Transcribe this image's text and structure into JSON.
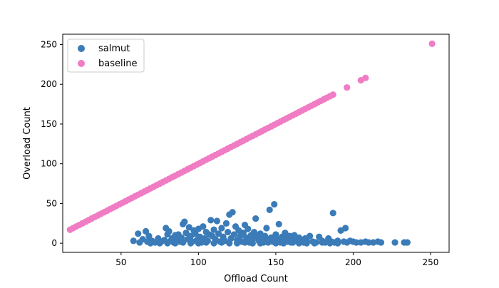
{
  "chart_data": {
    "type": "scatter",
    "title": "",
    "xlabel": "Offload Count",
    "ylabel": "Overload Count",
    "xlim": [
      12.3,
      262.0
    ],
    "ylim": [
      -11.5,
      263.0
    ],
    "x_ticks": [
      50,
      100,
      150,
      200,
      250
    ],
    "y_ticks": [
      0,
      50,
      100,
      150,
      200,
      250
    ],
    "grid": false,
    "legend_position": "top-left",
    "series": [
      {
        "name": "salmut",
        "color": "#3a7bb8",
        "points": [
          [
            58,
            3
          ],
          [
            61,
            12
          ],
          [
            64,
            5
          ],
          [
            66,
            15
          ],
          [
            67,
            2
          ],
          [
            68,
            9
          ],
          [
            70,
            3
          ],
          [
            72,
            1
          ],
          [
            74,
            6
          ],
          [
            76,
            2
          ],
          [
            78,
            4
          ],
          [
            79,
            19
          ],
          [
            80,
            11
          ],
          [
            81,
            15
          ],
          [
            82,
            3
          ],
          [
            83,
            6
          ],
          [
            84,
            1
          ],
          [
            85,
            10
          ],
          [
            86,
            4
          ],
          [
            87,
            11
          ],
          [
            88,
            2
          ],
          [
            89,
            7
          ],
          [
            90,
            24
          ],
          [
            91,
            27
          ],
          [
            92,
            13
          ],
          [
            93,
            5
          ],
          [
            94,
            20
          ],
          [
            95,
            9
          ],
          [
            96,
            2
          ],
          [
            97,
            16
          ],
          [
            98,
            12
          ],
          [
            99,
            4
          ],
          [
            100,
            18
          ],
          [
            101,
            8
          ],
          [
            102,
            1
          ],
          [
            103,
            21
          ],
          [
            104,
            6
          ],
          [
            105,
            14
          ],
          [
            106,
            3
          ],
          [
            107,
            11
          ],
          [
            108,
            29
          ],
          [
            109,
            9
          ],
          [
            110,
            17
          ],
          [
            111,
            5
          ],
          [
            112,
            28
          ],
          [
            113,
            12
          ],
          [
            114,
            2
          ],
          [
            115,
            19
          ],
          [
            116,
            8
          ],
          [
            117,
            3
          ],
          [
            118,
            25
          ],
          [
            119,
            14
          ],
          [
            120,
            36
          ],
          [
            121,
            6
          ],
          [
            122,
            39
          ],
          [
            123,
            11
          ],
          [
            124,
            21
          ],
          [
            125,
            4
          ],
          [
            126,
            16
          ],
          [
            127,
            9
          ],
          [
            128,
            2
          ],
          [
            129,
            13
          ],
          [
            130,
            23
          ],
          [
            131,
            7
          ],
          [
            132,
            18
          ],
          [
            133,
            1
          ],
          [
            134,
            10
          ],
          [
            135,
            5
          ],
          [
            136,
            14
          ],
          [
            137,
            31
          ],
          [
            138,
            8
          ],
          [
            139,
            3
          ],
          [
            140,
            12
          ],
          [
            141,
            6
          ],
          [
            142,
            1
          ],
          [
            143,
            9
          ],
          [
            144,
            19
          ],
          [
            145,
            4
          ],
          [
            146,
            42
          ],
          [
            147,
            7
          ],
          [
            148,
            2
          ],
          [
            149,
            49
          ],
          [
            150,
            11
          ],
          [
            151,
            5
          ],
          [
            152,
            24
          ],
          [
            153,
            1
          ],
          [
            154,
            8
          ],
          [
            155,
            3
          ],
          [
            156,
            13
          ],
          [
            157,
            6
          ],
          [
            158,
            2
          ],
          [
            159,
            9
          ],
          [
            160,
            4
          ],
          [
            161,
            1
          ],
          [
            162,
            10
          ],
          [
            163,
            5
          ],
          [
            164,
            3
          ],
          [
            165,
            7
          ],
          [
            166,
            2
          ],
          [
            167,
            4
          ],
          [
            168,
            1
          ],
          [
            169,
            6
          ],
          [
            170,
            3
          ],
          [
            172,
            9
          ],
          [
            174,
            2
          ],
          [
            176,
            1
          ],
          [
            178,
            8
          ],
          [
            180,
            3
          ],
          [
            182,
            1
          ],
          [
            184,
            6
          ],
          [
            186,
            2
          ],
          [
            187,
            38
          ],
          [
            188,
            1
          ],
          [
            190,
            3
          ],
          [
            192,
            16
          ],
          [
            194,
            2
          ],
          [
            195,
            19
          ],
          [
            196,
            1
          ],
          [
            198,
            3
          ],
          [
            200,
            2
          ],
          [
            202,
            1
          ],
          [
            205,
            1
          ],
          [
            208,
            2
          ],
          [
            210,
            1
          ],
          [
            213,
            1
          ],
          [
            216,
            2
          ],
          [
            218,
            1
          ],
          [
            227,
            1
          ],
          [
            233,
            1
          ],
          [
            235,
            1
          ],
          [
            62,
            1
          ],
          [
            69,
            0
          ],
          [
            75,
            0
          ],
          [
            80,
            0
          ],
          [
            85,
            0
          ],
          [
            90,
            1
          ],
          [
            95,
            0
          ],
          [
            100,
            0
          ],
          [
            105,
            1
          ],
          [
            110,
            0
          ],
          [
            115,
            1
          ],
          [
            120,
            0
          ],
          [
            125,
            0
          ],
          [
            130,
            1
          ],
          [
            135,
            0
          ],
          [
            140,
            0
          ],
          [
            145,
            1
          ],
          [
            150,
            0
          ],
          [
            155,
            0
          ],
          [
            160,
            1
          ],
          [
            165,
            0
          ],
          [
            170,
            0
          ],
          [
            175,
            0
          ],
          [
            180,
            1
          ],
          [
            185,
            0
          ],
          [
            190,
            0
          ]
        ]
      },
      {
        "name": "baseline",
        "color": "#f07cc4",
        "points": [
          [
            17,
            17
          ],
          [
            19,
            19
          ],
          [
            21,
            21
          ],
          [
            23,
            23
          ],
          [
            25,
            25
          ],
          [
            27,
            27
          ],
          [
            29,
            29
          ],
          [
            31,
            31
          ],
          [
            33,
            33
          ],
          [
            35,
            35
          ],
          [
            37,
            37
          ],
          [
            39,
            39
          ],
          [
            41,
            41
          ],
          [
            43,
            43
          ],
          [
            45,
            45
          ],
          [
            47,
            47
          ],
          [
            49,
            49
          ],
          [
            51,
            51
          ],
          [
            53,
            53
          ],
          [
            55,
            55
          ],
          [
            57,
            57
          ],
          [
            59,
            59
          ],
          [
            61,
            61
          ],
          [
            63,
            63
          ],
          [
            65,
            65
          ],
          [
            67,
            67
          ],
          [
            69,
            69
          ],
          [
            71,
            71
          ],
          [
            73,
            73
          ],
          [
            75,
            75
          ],
          [
            77,
            77
          ],
          [
            79,
            79
          ],
          [
            81,
            81
          ],
          [
            83,
            83
          ],
          [
            85,
            85
          ],
          [
            87,
            87
          ],
          [
            89,
            89
          ],
          [
            91,
            91
          ],
          [
            93,
            93
          ],
          [
            95,
            95
          ],
          [
            97,
            97
          ],
          [
            99,
            99
          ],
          [
            101,
            101
          ],
          [
            103,
            103
          ],
          [
            105,
            105
          ],
          [
            107,
            107
          ],
          [
            109,
            109
          ],
          [
            111,
            111
          ],
          [
            113,
            113
          ],
          [
            115,
            115
          ],
          [
            117,
            117
          ],
          [
            119,
            119
          ],
          [
            121,
            121
          ],
          [
            123,
            123
          ],
          [
            125,
            125
          ],
          [
            127,
            127
          ],
          [
            129,
            129
          ],
          [
            131,
            131
          ],
          [
            133,
            133
          ],
          [
            135,
            135
          ],
          [
            137,
            137
          ],
          [
            139,
            139
          ],
          [
            141,
            141
          ],
          [
            143,
            143
          ],
          [
            145,
            145
          ],
          [
            147,
            147
          ],
          [
            149,
            149
          ],
          [
            151,
            151
          ],
          [
            153,
            153
          ],
          [
            155,
            155
          ],
          [
            157,
            157
          ],
          [
            159,
            159
          ],
          [
            161,
            161
          ],
          [
            163,
            163
          ],
          [
            165,
            165
          ],
          [
            167,
            167
          ],
          [
            169,
            169
          ],
          [
            171,
            171
          ],
          [
            173,
            173
          ],
          [
            175,
            175
          ],
          [
            177,
            177
          ],
          [
            179,
            179
          ],
          [
            181,
            181
          ],
          [
            183,
            183
          ],
          [
            185,
            185
          ],
          [
            187,
            187
          ],
          [
            196,
            196
          ],
          [
            205,
            205
          ],
          [
            208,
            208
          ],
          [
            251,
            251
          ]
        ]
      }
    ]
  }
}
